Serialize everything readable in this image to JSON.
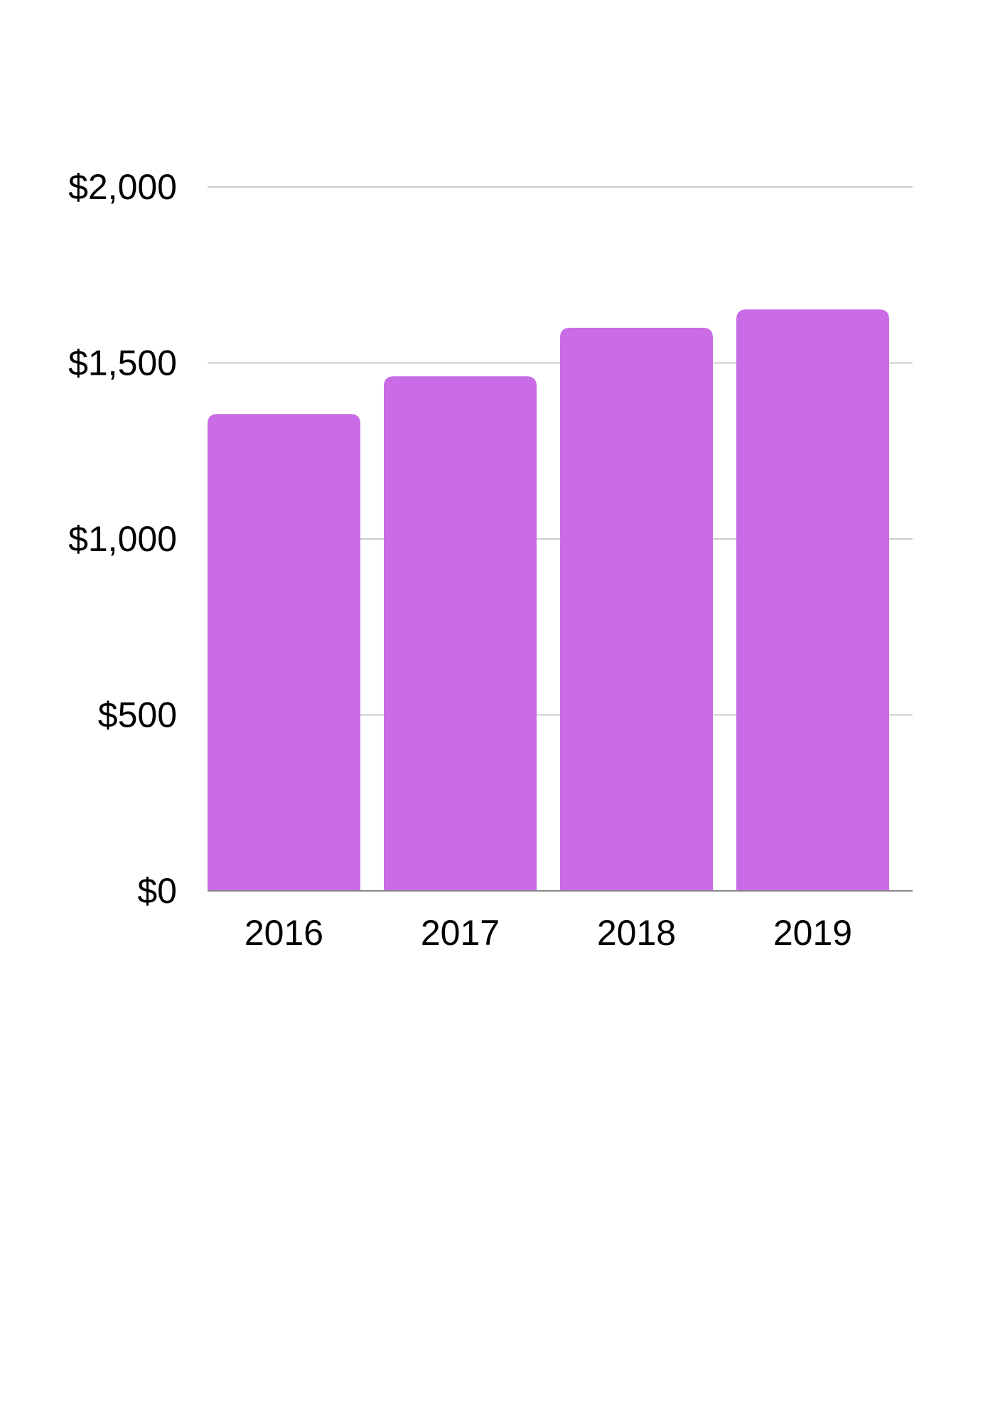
{
  "chart_data": {
    "type": "bar",
    "title": "",
    "xlabel": "",
    "ylabel": "",
    "categories": [
      "2016",
      "2017",
      "2018",
      "2019"
    ],
    "values": [
      1355,
      1462,
      1600,
      1652
    ],
    "ylim": [
      0,
      2000
    ],
    "y_ticks": [
      0,
      500,
      1000,
      1500,
      2000
    ],
    "y_tick_labels": [
      "$0",
      "$500",
      "$1,000",
      "$1,500",
      "$2,000"
    ],
    "grid": true,
    "legend": "none",
    "bar_color": "#c96ce6",
    "gridline_color": "#cccccc",
    "baseline_color": "#888888"
  }
}
